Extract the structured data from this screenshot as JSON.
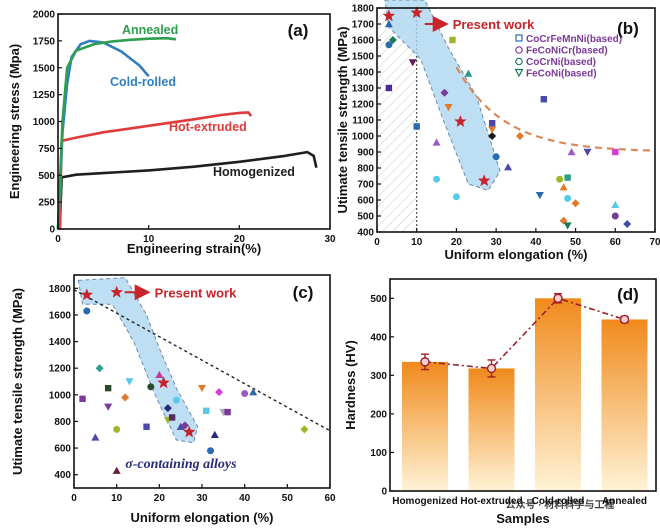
{
  "colors": {
    "homogenized": "#1f1f1f",
    "hot_extruded": "#e03a3a",
    "cold_rolled": "#2f7fc0",
    "annealed": "#2e9e4f",
    "present_work": "#c8242b",
    "blue_region": "#aed6f1",
    "orange_bar_top": "#f08a1c",
    "orange_bar_bottom": "#fff3d6",
    "dashed_brown": "#d98a5a",
    "legend_text": "#7a3a9a",
    "sigma_text": "#2a2a7a"
  },
  "chart_data": [
    {
      "panel": "(a)",
      "type": "line",
      "xlabel": "Engineering strain(%)",
      "ylabel": "Engineering stress (Mpa)",
      "xlim": [
        0,
        30
      ],
      "ylim": [
        0,
        2000
      ],
      "xticks": [
        "0",
        "10",
        "20",
        "30"
      ],
      "yticks": [
        "0",
        "250",
        "500",
        "750",
        "1000",
        "1250",
        "1500",
        "1750",
        "2000"
      ],
      "series": [
        {
          "name": "Homogenized",
          "color_key": "homogenized",
          "points": [
            [
              0.2,
              0
            ],
            [
              0.4,
              480
            ],
            [
              2,
              505
            ],
            [
              5,
              520
            ],
            [
              10,
              545
            ],
            [
              15,
              580
            ],
            [
              20,
              625
            ],
            [
              25,
              680
            ],
            [
              27.5,
              715
            ],
            [
              28.2,
              680
            ],
            [
              28.5,
              570
            ]
          ]
        },
        {
          "name": "Hot-extruded",
          "color_key": "hot_extruded",
          "points": [
            [
              0.2,
              0
            ],
            [
              0.4,
              820
            ],
            [
              2,
              850
            ],
            [
              5,
              900
            ],
            [
              10,
              960
            ],
            [
              15,
              1020
            ],
            [
              18,
              1060
            ],
            [
              20,
              1080
            ],
            [
              21,
              1085
            ],
            [
              21.3,
              1050
            ]
          ]
        },
        {
          "name": "Cold-rolled",
          "color_key": "cold_rolled",
          "points": [
            [
              0,
              0
            ],
            [
              0.5,
              900
            ],
            [
              1,
              1350
            ],
            [
              1.5,
              1600
            ],
            [
              2.5,
              1720
            ],
            [
              3.5,
              1750
            ],
            [
              5,
              1735
            ],
            [
              7,
              1650
            ],
            [
              9,
              1520
            ],
            [
              10,
              1420
            ]
          ]
        },
        {
          "name": "Annealed",
          "color_key": "annealed",
          "points": [
            [
              0,
              0
            ],
            [
              0.5,
              1000
            ],
            [
              1,
              1500
            ],
            [
              2,
              1660
            ],
            [
              4,
              1720
            ],
            [
              6,
              1745
            ],
            [
              8,
              1760
            ],
            [
              10,
              1770
            ],
            [
              12,
              1775
            ],
            [
              13,
              1765
            ]
          ]
        }
      ]
    },
    {
      "panel": "(b)",
      "type": "scatter",
      "xlabel": "Uniform elongation (%)",
      "ylabel": "Utimate tensile strength (MPa)",
      "xlim": [
        0,
        70
      ],
      "ylim": [
        400,
        1800
      ],
      "xticks": [
        "0",
        "10",
        "20",
        "30",
        "40",
        "50",
        "60",
        "70"
      ],
      "yticks": [
        "400",
        "500",
        "600",
        "700",
        "800",
        "900",
        "1000",
        "1100",
        "1200",
        "1300",
        "1400",
        "1500",
        "1600",
        "1700",
        "1800"
      ],
      "annotation": "Present work",
      "legend": [
        "CoCrFeMnNi(based)",
        "FeCoNiCr(based)",
        "CoCrNi(based)",
        "FeCoNi(based)"
      ],
      "present_work": [
        [
          3,
          1750
        ],
        [
          10,
          1770
        ],
        [
          21,
          1090
        ],
        [
          27,
          720
        ]
      ],
      "others": [
        [
          3,
          1300,
          "#4a2a9a"
        ],
        [
          3,
          1570,
          "#2a6ab0"
        ],
        [
          3,
          1700,
          "#2a6ab0"
        ],
        [
          4,
          1600,
          "#1a7a5a"
        ],
        [
          9,
          1460,
          "#6a1a5a"
        ],
        [
          10,
          1060,
          "#2a6ab0"
        ],
        [
          15,
          730,
          "#5ac8e8"
        ],
        [
          15,
          960,
          "#9a5ac8"
        ],
        [
          17,
          1270,
          "#7a3a9a"
        ],
        [
          18,
          1180,
          "#e07a2a"
        ],
        [
          19,
          1600,
          "#9ab82a"
        ],
        [
          20,
          620,
          "#5ac8e8"
        ],
        [
          23,
          1390,
          "#2a9a8a"
        ],
        [
          29,
          1000,
          "#1a1a1a"
        ],
        [
          29,
          1040,
          "#e07a2a"
        ],
        [
          29,
          1080,
          "#4a4aaa"
        ],
        [
          30,
          870,
          "#2a6ab0"
        ],
        [
          33,
          805,
          "#4a4aaa"
        ],
        [
          36,
          1000,
          "#e07a2a"
        ],
        [
          41,
          630,
          "#2a6ab0"
        ],
        [
          42,
          1230,
          "#4a4aaa"
        ],
        [
          46,
          730,
          "#9ab82a"
        ],
        [
          47,
          680,
          "#e07a2a"
        ],
        [
          47,
          470,
          "#e07a2a"
        ],
        [
          48,
          440,
          "#1a7a5a"
        ],
        [
          48,
          740,
          "#2aa08a"
        ],
        [
          48,
          610,
          "#5ac8e8"
        ],
        [
          49,
          900,
          "#9a5ac8"
        ],
        [
          50,
          580,
          "#e07a2a"
        ],
        [
          53,
          900,
          "#4a4aaa"
        ],
        [
          60,
          900,
          "#d83ad8"
        ],
        [
          60,
          500,
          "#7a3a9a"
        ],
        [
          60,
          570,
          "#5ac8e8"
        ],
        [
          63,
          450,
          "#4a4aaa"
        ]
      ]
    },
    {
      "panel": "(c)",
      "type": "scatter",
      "xlabel": "Uniform elongation (%)",
      "ylabel": "Utimate tensile strength (MPa)",
      "xlim": [
        0,
        60
      ],
      "ylim": [
        300,
        1900
      ],
      "xticks": [
        "0",
        "10",
        "20",
        "30",
        "40",
        "50",
        "60"
      ],
      "yticks": [
        "400",
        "600",
        "800",
        "1000",
        "1200",
        "1400",
        "1600",
        "1800"
      ],
      "annotation": "Present work",
      "note": "σ-containing alloys",
      "present_work": [
        [
          3,
          1750
        ],
        [
          10,
          1770
        ],
        [
          21,
          1090
        ],
        [
          27,
          720
        ]
      ],
      "others": [
        [
          2,
          970,
          "#7a3a9a"
        ],
        [
          3,
          1630,
          "#2a6ab0"
        ],
        [
          5,
          680,
          "#4a4aaa"
        ],
        [
          6,
          1200,
          "#2aa08a"
        ],
        [
          8,
          910,
          "#7a3a9a"
        ],
        [
          8,
          1050,
          "#2a4a2a"
        ],
        [
          10,
          740,
          "#9ab82a"
        ],
        [
          10,
          430,
          "#6a1a3a"
        ],
        [
          12,
          980,
          "#e07a2a"
        ],
        [
          13,
          1100,
          "#5ac8e8"
        ],
        [
          17,
          760,
          "#4a4aaa"
        ],
        [
          18,
          1060,
          "#2a4a2a"
        ],
        [
          20,
          1150,
          "#c83a9a"
        ],
        [
          22,
          900,
          "#2a2a7a"
        ],
        [
          22,
          810,
          "#9ab82a"
        ],
        [
          23,
          830,
          "#5a2a5a"
        ],
        [
          24,
          960,
          "#5ac8e8"
        ],
        [
          25,
          760,
          "#4a4aaa"
        ],
        [
          26,
          770,
          "#7a3a9a"
        ],
        [
          30,
          1050,
          "#e07a2a"
        ],
        [
          31,
          880,
          "#5ac8e8"
        ],
        [
          32,
          580,
          "#2a6ab0"
        ],
        [
          33,
          700,
          "#2a2a7a"
        ],
        [
          34,
          1020,
          "#d83ad8"
        ],
        [
          35,
          870,
          "#aaaaaa"
        ],
        [
          36,
          870,
          "#7a3a9a"
        ],
        [
          40,
          1010,
          "#9a5ac8"
        ],
        [
          42,
          1020,
          "#2a6ab0"
        ],
        [
          54,
          740,
          "#9ab82a"
        ]
      ]
    },
    {
      "panel": "(d)",
      "type": "bar",
      "xlabel": "Samples",
      "ylabel": "Hardness (HV)",
      "ylim": [
        0,
        550
      ],
      "yticks": [
        "0",
        "100",
        "200",
        "300",
        "400",
        "500"
      ],
      "categories": [
        "Homogenized",
        "Hot-extruded",
        "Cold-rolled",
        "Annealed"
      ],
      "values": [
        335,
        318,
        500,
        445
      ],
      "errors": [
        20,
        22,
        12,
        8
      ]
    }
  ],
  "watermark": "公众号 · 材料科学与工程"
}
